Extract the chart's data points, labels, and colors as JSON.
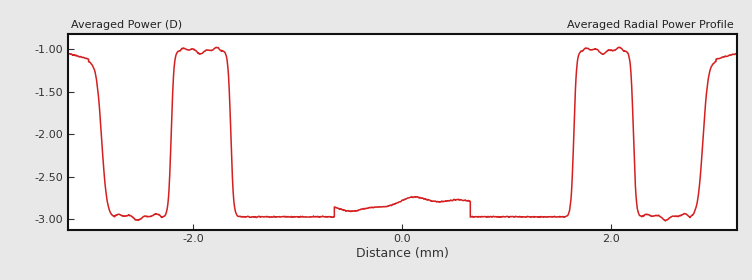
{
  "title_left": "Averaged Power (D)",
  "title_right": "Averaged Radial Power Profile",
  "xlabel": "Distance (mm)",
  "xlim": [
    -3.2,
    3.2
  ],
  "ylim": [
    -3.12,
    -0.82
  ],
  "yticks": [
    -3.0,
    -2.5,
    -2.0,
    -1.5,
    -1.0
  ],
  "xticks": [
    -2.0,
    0.0,
    2.0
  ],
  "line_color": "#d42020",
  "bg_color": "#e8e8e8",
  "plot_bg": "#ffffff",
  "linewidth": 1.1,
  "text_color": "#222222",
  "label_color": "#333333"
}
